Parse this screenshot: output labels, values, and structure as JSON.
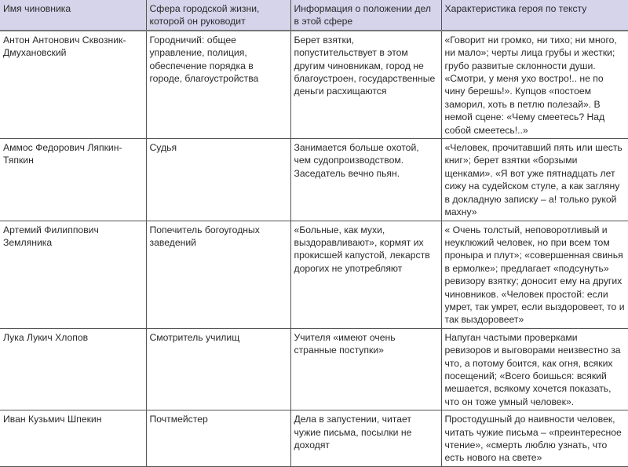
{
  "headers": [
    "Имя чиновника",
    "Сфера городской жизни, которой он руководит",
    "Информация о положении дел в этой сфере",
    "Характеристика героя по тексту"
  ],
  "rows": [
    [
      "Антон Антонович Сквозник-Дмухановский",
      "Городничий: общее управление, полиция, обеспечение порядка в городе, благоустройства",
      "Берет взятки, попустительствует в этом другим чиновникам, город не благоустроен, государственные деньги расхищаются",
      "«Говорит ни громко, ни тихо; ни много, ни мало»; черты лица грубы и жестки; грубо развитые склонности души. «Смотри, у меня ухо востро!.. не по чину берешь!». Купцов «постоем заморил, хоть в петлю полезай». В немой сцене: «Чему смеетесь? Над собой смеетесь!..»"
    ],
    [
      "Аммос Федорович Ляпкин-Тяпкин",
      "Судья",
      "Занимается больше охотой, чем судопроизводством. Заседатель вечно пьян.",
      "«Человек, прочитавший пять или шесть книг»; берет взятки «борзыми щенками». «Я вот уже пятнадцать лет сижу на судейском стуле, а как загляну в докладную записку – а! только рукой махну»"
    ],
    [
      "Артемий Филиппович Земляника",
      "Попечитель богоугодных заведений",
      "«Больные, как мухи, выздоравливают», кормят их прокисшей капустой, лекарств дорогих не употребляют",
      "« Очень толстый, неповоротливый и неуклюжий человек, но при всем том проныра и плут»; «совершенная свинья в ермолке»; предлагает «подсунуть» ревизору взятку; доносит ему на других чиновников. «Человек простой: если умрет, так умрет, если выздоровеет, то и так выздоровеет»"
    ],
    [
      "Лука Лукич Хлопов",
      "Смотритель училищ",
      "Учителя «имеют очень странные поступки»",
      "Напуган частыми проверками ревизоров и выговорами неизвестно за что, а потому боится, как огня, всяких посещений; «Всего боишься: всякий мешается, всякому хочется показать, что он тоже умный человек»."
    ],
    [
      "Иван Кузьмич Шпекин",
      "Почтмейстер",
      "Дела в запустении, читает чужие письма, посылки не доходят",
      "Простодушный до наивности человек, читать чужие письма – «преинтересное чтение», «смерть люблю узнать, что есть нового на свете»"
    ]
  ]
}
